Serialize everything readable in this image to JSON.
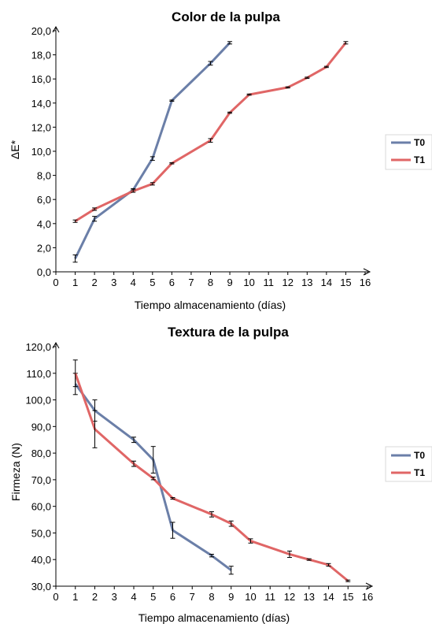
{
  "chart_data": [
    {
      "type": "line",
      "title": "Color de la pulpa",
      "xlabel": "Tiempo almacenamiento (días)",
      "ylabel": "ΔE*",
      "xlim": [
        0,
        16
      ],
      "ylim": [
        0,
        20
      ],
      "x_ticks": [
        "0",
        "1",
        "2",
        "3",
        "4",
        "5",
        "6",
        "7",
        "8",
        "9",
        "10",
        "11",
        "12",
        "13",
        "14",
        "15",
        "16"
      ],
      "y_ticks": [
        "0,0",
        "2,0",
        "4,0",
        "6,0",
        "8,0",
        "10,0",
        "12,0",
        "14,0",
        "16,0",
        "18,0",
        "20,0"
      ],
      "legend_position": "right",
      "series": [
        {
          "name": "T0",
          "color": "#6b7fa8",
          "x": [
            1,
            2,
            4,
            5,
            6,
            8,
            9
          ],
          "y": [
            1.1,
            4.4,
            6.8,
            9.4,
            14.2,
            17.3,
            19.0
          ],
          "err": [
            0.3,
            0.2,
            0.1,
            0.15,
            0.05,
            0.15,
            0.1
          ]
        },
        {
          "name": "T1",
          "color": "#e06666",
          "x": [
            1,
            2,
            4,
            5,
            6,
            8,
            9,
            10,
            12,
            13,
            14,
            15
          ],
          "y": [
            4.2,
            5.2,
            6.7,
            7.3,
            9.0,
            10.9,
            13.2,
            14.7,
            15.3,
            16.1,
            17.0,
            19.0
          ],
          "err": [
            0.1,
            0.1,
            0.1,
            0.1,
            0.05,
            0.15,
            0.05,
            0.05,
            0.05,
            0.05,
            0.05,
            0.1
          ]
        }
      ]
    },
    {
      "type": "line",
      "title": "Textura de la pulpa",
      "xlabel": "Tiempo almacenamiento (días)",
      "ylabel": "Firmeza (N)",
      "xlim": [
        0,
        16
      ],
      "ylim": [
        30,
        120
      ],
      "x_ticks": [
        "0",
        "1",
        "2",
        "3",
        "4",
        "5",
        "6",
        "7",
        "8",
        "9",
        "10",
        "11",
        "12",
        "13",
        "14",
        "15",
        "16"
      ],
      "y_ticks": [
        "30,0",
        "40,0",
        "50,0",
        "60,0",
        "70,0",
        "80,0",
        "90,0",
        "100,0",
        "110,0",
        "120,0"
      ],
      "legend_position": "right",
      "series": [
        {
          "name": "T0",
          "color": "#6b7fa8",
          "x": [
            1,
            2,
            4,
            5,
            6,
            8,
            9
          ],
          "y": [
            106,
            96,
            85,
            77.5,
            51,
            41.5,
            36
          ],
          "err": [
            4,
            4,
            1,
            5,
            3,
            0.5,
            1.5
          ]
        },
        {
          "name": "T1",
          "color": "#e06666",
          "x": [
            1,
            2,
            4,
            5,
            6,
            8,
            9,
            10,
            12,
            13,
            14,
            15
          ],
          "y": [
            110,
            89,
            76,
            70.5,
            63,
            57,
            53.5,
            47,
            42,
            40,
            38,
            32
          ],
          "err": [
            5,
            7,
            1,
            0.5,
            0.3,
            1,
            1,
            0.8,
            1.2,
            0.3,
            0.5,
            0.3
          ]
        }
      ]
    }
  ]
}
